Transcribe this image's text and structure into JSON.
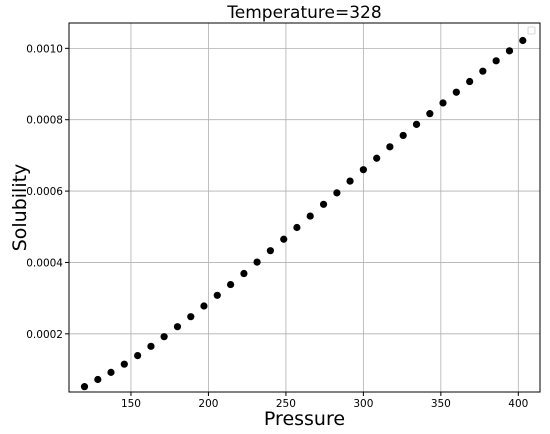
{
  "chart_data": {
    "type": "scatter",
    "title": "Temperature=328",
    "xlabel": "Pressure",
    "ylabel": "Solubility",
    "xlim": [
      110,
      414
    ],
    "ylim": [
      3.7e-05,
      0.001071
    ],
    "xticks": [
      150,
      200,
      250,
      300,
      350,
      400
    ],
    "xtick_labels": [
      "150",
      "200",
      "250",
      "300",
      "350",
      "400"
    ],
    "yticks": [
      0.0002,
      0.0004,
      0.0006,
      0.0008,
      0.001
    ],
    "ytick_labels": [
      "0.0002",
      "0.0004",
      "0.0006",
      "0.0008",
      "0.0010"
    ],
    "grid": true,
    "legend": "top-right",
    "marker_color": "#000000",
    "x": [
      120,
      128.6,
      137.1,
      145.7,
      154.3,
      162.9,
      171.4,
      180,
      188.6,
      197.1,
      205.7,
      214.3,
      222.9,
      231.4,
      240,
      248.6,
      257.1,
      265.7,
      274.3,
      282.9,
      291.4,
      300,
      308.6,
      317.1,
      325.7,
      334.3,
      342.9,
      351.4,
      360,
      368.6,
      377.1,
      385.7,
      394.3,
      402.9
    ],
    "y": [
      5.2e-05,
      7.2e-05,
      9.2e-05,
      0.000115,
      0.000139,
      0.000165,
      0.000192,
      0.00022,
      0.000248,
      0.000278,
      0.000308,
      0.000338,
      0.000369,
      0.000401,
      0.000433,
      0.000465,
      0.000498,
      0.00053,
      0.000563,
      0.000595,
      0.000628,
      0.00066,
      0.000692,
      0.000724,
      0.000756,
      0.000787,
      0.000817,
      0.000847,
      0.000877,
      0.000907,
      0.000936,
      0.000965,
      0.000993,
      0.001022
    ]
  }
}
